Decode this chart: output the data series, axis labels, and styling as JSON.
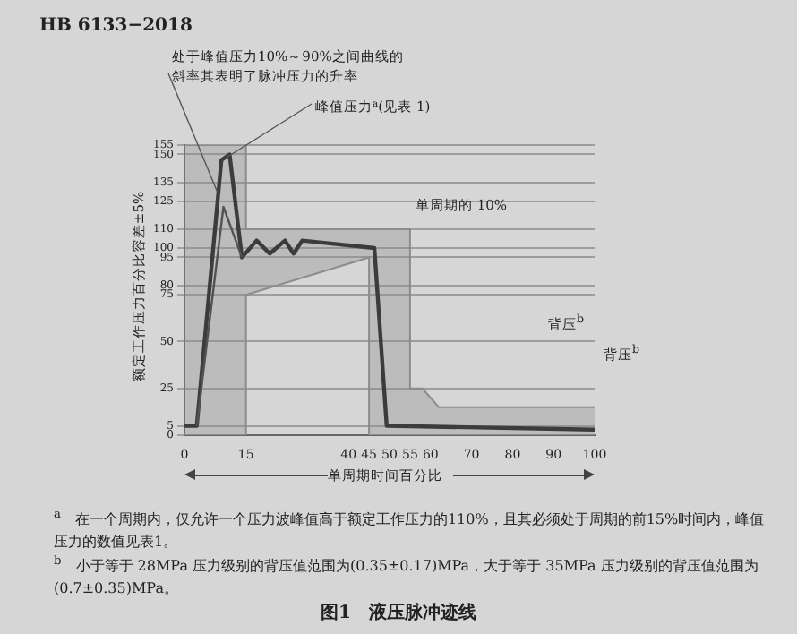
{
  "chart_data": {
    "type": "line",
    "title": "图1　液压脉冲迹线",
    "xlabel": "单周期时间百分比",
    "ylabel": "额定工作压力百分比容差±5%",
    "xlim": [
      0,
      100
    ],
    "xticks": [
      0,
      15,
      40,
      45,
      50,
      55,
      60,
      70,
      80,
      90,
      100
    ],
    "ylim": [
      0,
      155
    ],
    "yticks": [
      0,
      5,
      25,
      50,
      75,
      80,
      95,
      100,
      110,
      125,
      135,
      150,
      155
    ],
    "grid": "y",
    "legend": false,
    "marker": "none",
    "series": [
      {
        "type": "line",
        "color": "#8c8c8c",
        "x": [
          0,
          15,
          15,
          45,
          45,
          100
        ],
        "values": [
          0,
          0,
          75,
          95,
          0,
          0
        ]
      },
      {
        "type": "area",
        "color": "#8c8c8c",
        "x": [
          0,
          15,
          15,
          45,
          45,
          55,
          55,
          58,
          62,
          100
        ],
        "values": [
          155,
          155,
          110,
          110,
          110,
          110,
          25,
          25,
          15,
          15
        ]
      },
      {
        "color": "#333333",
        "x": [
          3,
          9.5,
          14
        ],
        "values": [
          5,
          122,
          95
        ]
      },
      {
        "color": "#111111",
        "x": [
          0,
          3,
          9,
          11,
          14,
          17.6,
          20.8,
          24.5,
          26.6,
          28.7,
          46.3,
          49.3,
          100
        ],
        "values": [
          5,
          5,
          147,
          150,
          95,
          104,
          97,
          104,
          97,
          104,
          100,
          5,
          3
        ]
      }
    ],
    "annotations": [
      "HB 6133−2018",
      {
        "text": "处于峰值压力10%～90%之间曲线的斜率其表明了脉冲压力的升率",
        "x": 8,
        "y": 130
      },
      {
        "text": "峰值压力$^{a}$(见表 1)",
        "x": 10,
        "y": 148
      },
      "单周期的 10%",
      "背压$^{b}$",
      "背压$^{b}$",
      "$^{a}$　在一个周期内，仅允许一个压力波峰值高于额定工作压力的110%，且其必须处于周期的前15%时间内，峰值压力的数值见表1。",
      "$^{b}$　小于等于 28MPa 压力级别的背压值范围为(0.35±0.17)MPa，大于等于 35MPa 压力级别的背压值范围为(0.7±0.35)MPa。"
    ]
  }
}
